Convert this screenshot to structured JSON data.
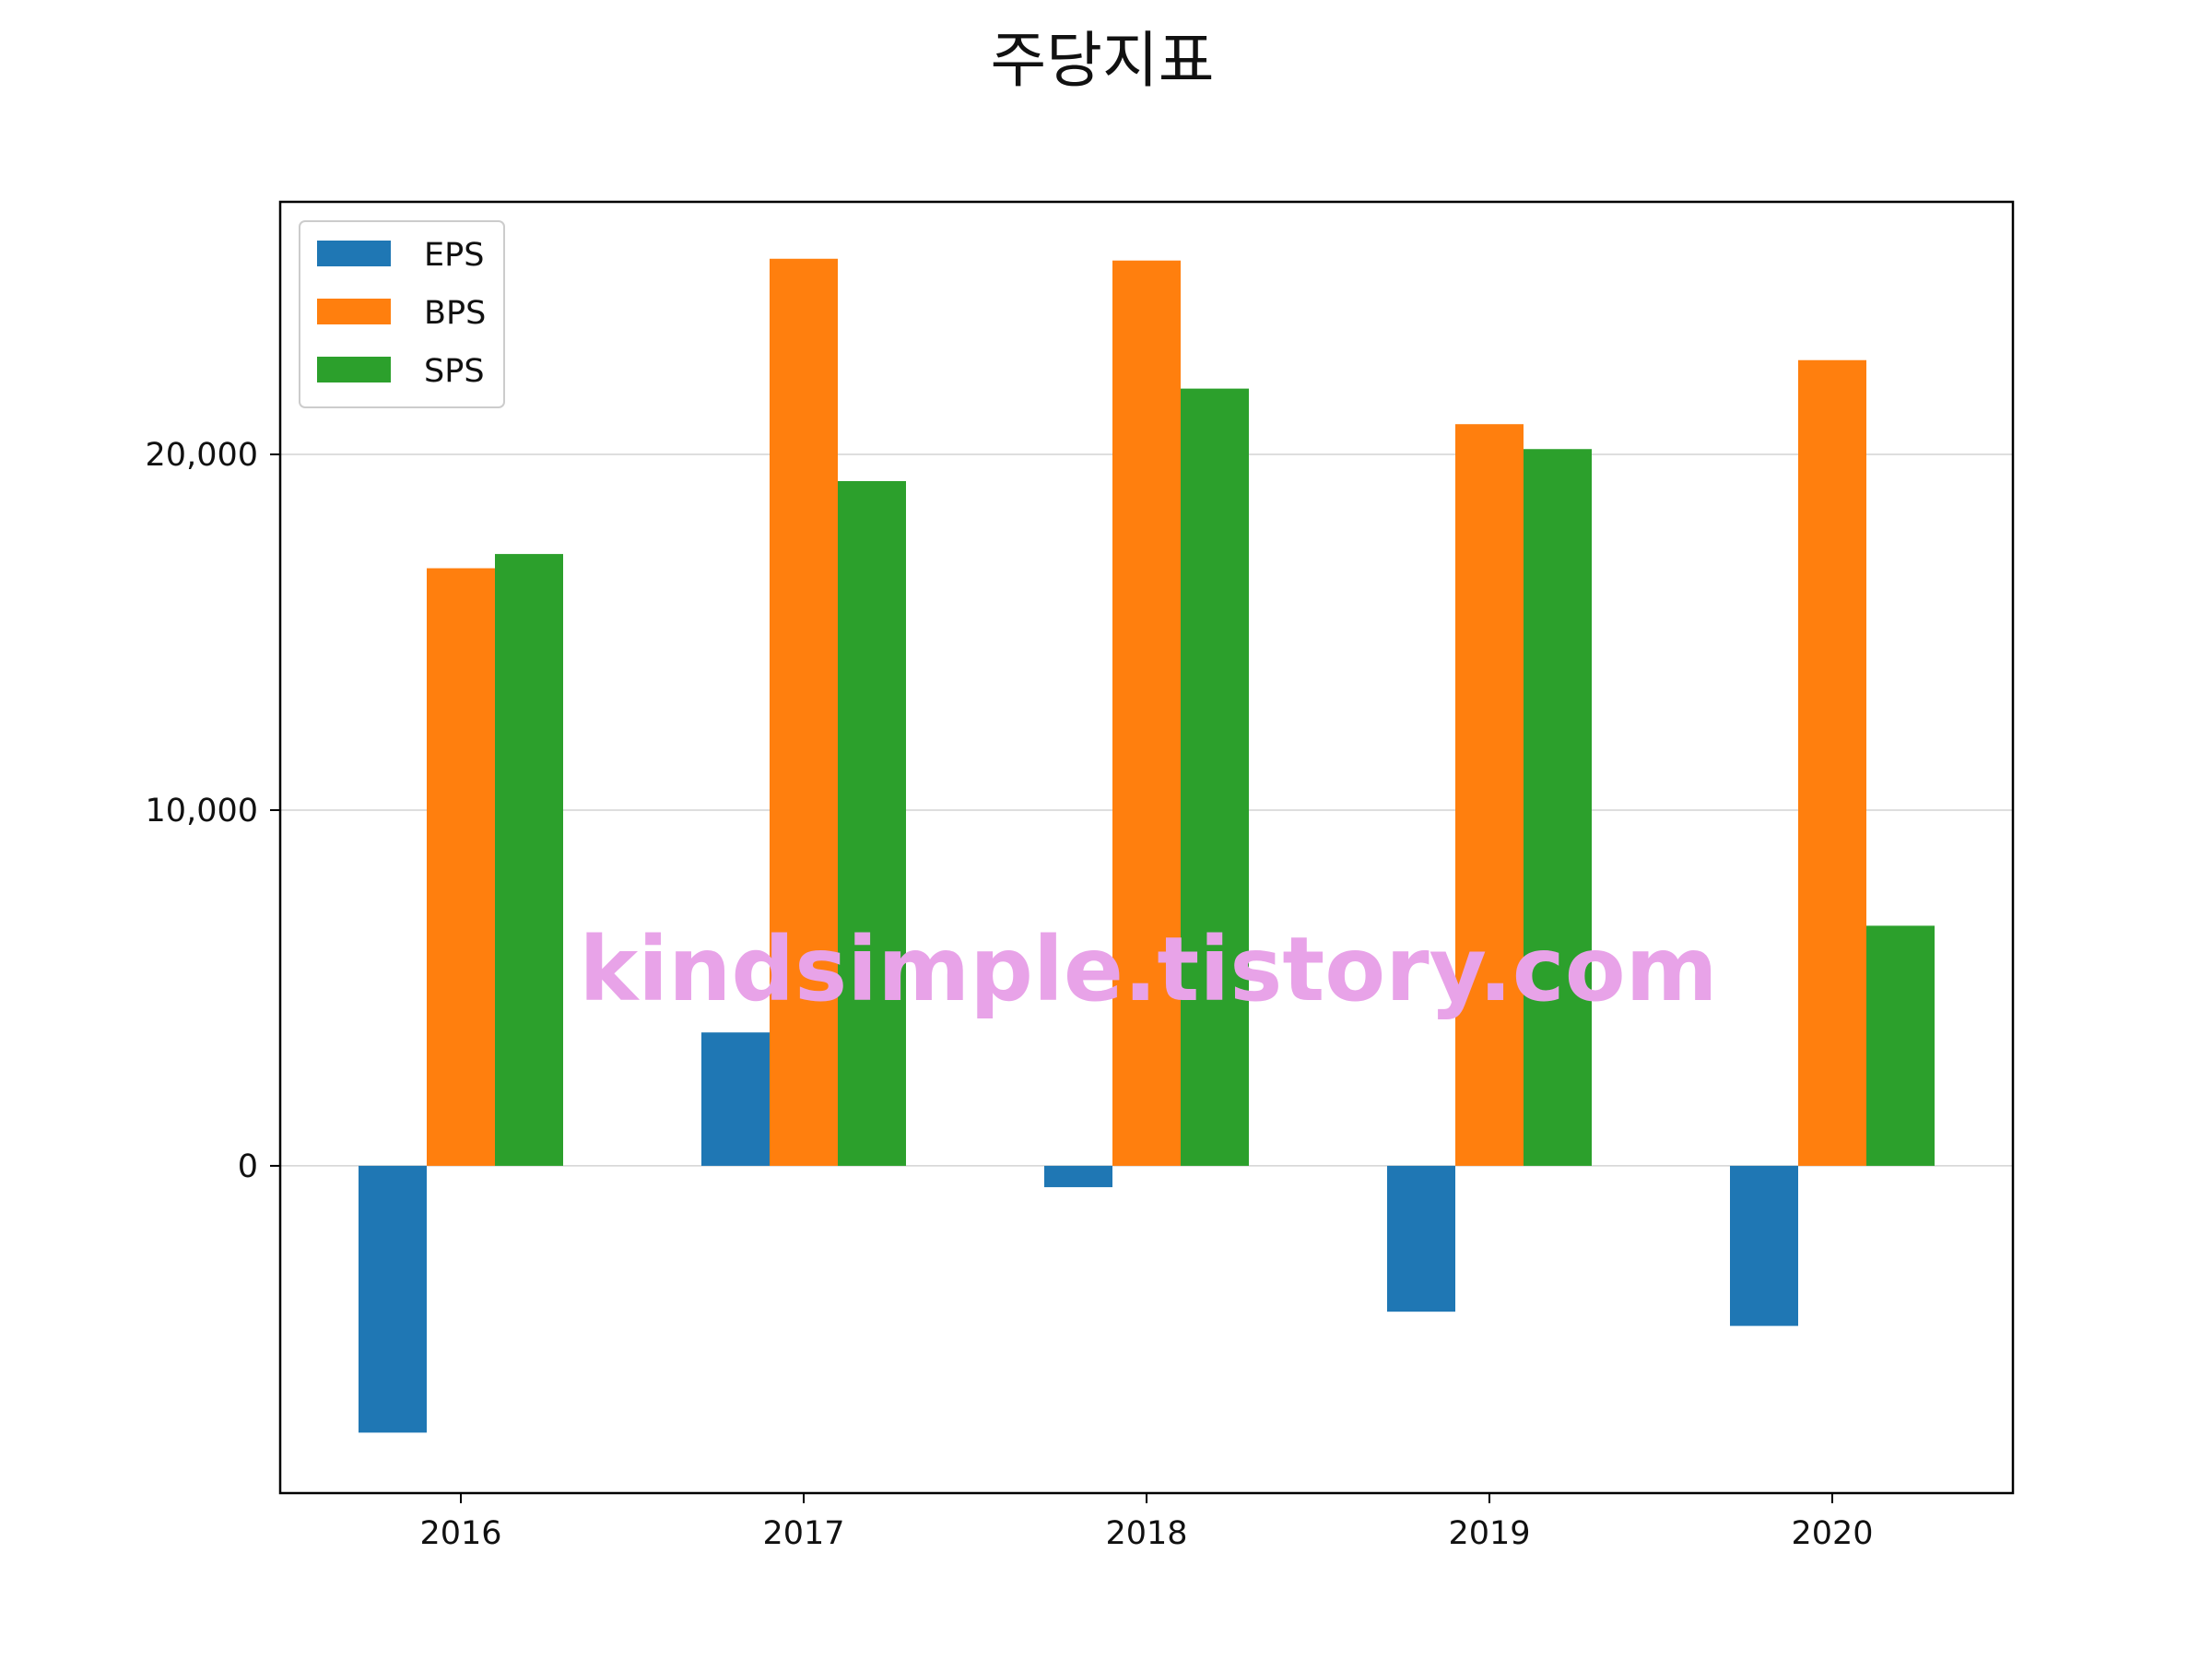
{
  "chart_data": {
    "type": "bar",
    "title": "주당지표",
    "xlabel": "",
    "ylabel": "",
    "categories": [
      "2016",
      "2017",
      "2018",
      "2019",
      "2020"
    ],
    "series": [
      {
        "name": "EPS",
        "color": "#1f77b4",
        "values": [
          -7500,
          3750,
          -600,
          -4100,
          -4500
        ]
      },
      {
        "name": "BPS",
        "color": "#ff7f0e",
        "values": [
          16800,
          25500,
          25450,
          20850,
          22650
        ]
      },
      {
        "name": "SPS",
        "color": "#2ca02c",
        "values": [
          17200,
          19250,
          21850,
          20150,
          6750
        ]
      }
    ],
    "ylim": [
      -9200,
      27100
    ],
    "yticks": [
      0,
      10000,
      20000
    ],
    "ytick_labels": [
      "0",
      "10,000",
      "20,000"
    ],
    "grid": "horizontal",
    "legend_position": "top-left"
  },
  "watermark": "kindsimple.tistory.com"
}
